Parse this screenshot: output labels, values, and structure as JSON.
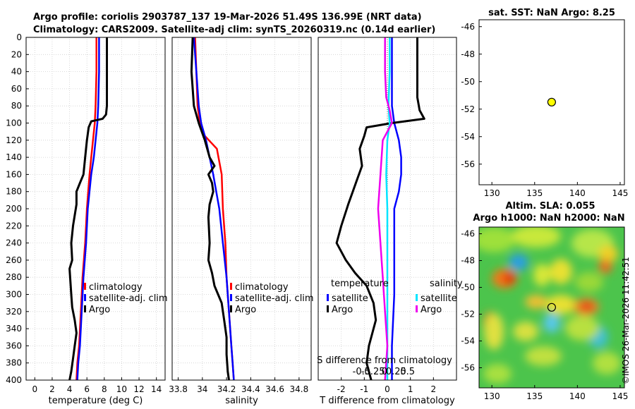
{
  "header": {
    "line1": "Argo profile: coriolis 2903787_137 19-Mar-2026 51.49S 136.99E (NRT data)",
    "line2": "Climatology: CARS2009. Satellite-adj clim: synTS_20260319.nc (0.14d earlier)"
  },
  "credit": "©IMOS 26-Mar-2026 11:42:51",
  "colors": {
    "climatology": "#ff0000",
    "satellite": "#0000ff",
    "argo": "#000000",
    "cyan": "#00e5ff",
    "magenta": "#ee00ee",
    "marker": "#ffff00"
  },
  "chart_data": [
    {
      "id": "temperature",
      "type": "line",
      "xlabel": "temperature (deg C)",
      "xlim": [
        -1,
        15
      ],
      "xticks": [
        0,
        2,
        4,
        6,
        8,
        10,
        12,
        14
      ],
      "ylim": [
        400,
        0
      ],
      "yticks": [
        0,
        20,
        40,
        60,
        80,
        100,
        120,
        140,
        160,
        180,
        200,
        220,
        240,
        260,
        280,
        300,
        320,
        340,
        360,
        380,
        400
      ],
      "legend": [
        "climatology",
        "satellite-adj. clim",
        "Argo"
      ],
      "series": [
        {
          "name": "climatology",
          "color": "#ff0000",
          "x": [
            7.1,
            7.1,
            7.0,
            6.9,
            6.7,
            6.5,
            6.3,
            6.0,
            5.8,
            5.5,
            5.3,
            5.1,
            4.9,
            4.8
          ],
          "y": [
            0,
            40,
            80,
            100,
            120,
            140,
            160,
            200,
            240,
            280,
            320,
            360,
            380,
            400
          ]
        },
        {
          "name": "satellite-adj. clim",
          "color": "#0000ff",
          "x": [
            7.4,
            7.4,
            7.3,
            7.2,
            7.0,
            6.8,
            6.5,
            6.1,
            5.9,
            5.6,
            5.4,
            5.2,
            5.0,
            4.9
          ],
          "y": [
            0,
            40,
            80,
            100,
            120,
            140,
            160,
            200,
            240,
            280,
            320,
            360,
            380,
            400
          ]
        },
        {
          "name": "Argo",
          "color": "#000000",
          "x": [
            8.3,
            8.3,
            8.3,
            8.2,
            7.8,
            6.5,
            6.2,
            6.0,
            5.8,
            5.6,
            5.2,
            4.8,
            4.8,
            4.4,
            4.2,
            4.3,
            4.0,
            4.1,
            4.2,
            4.3,
            4.6,
            4.8,
            4.6,
            4.4,
            4.2,
            4.0
          ],
          "y": [
            0,
            40,
            80,
            90,
            95,
            98,
            105,
            120,
            140,
            160,
            170,
            180,
            195,
            220,
            240,
            260,
            270,
            285,
            300,
            315,
            330,
            345,
            360,
            375,
            390,
            400
          ]
        }
      ]
    },
    {
      "id": "salinity",
      "type": "line",
      "xlabel": "salinity",
      "xlim": [
        33.75,
        34.9
      ],
      "xticks": [
        33.8,
        34,
        34.2,
        34.4,
        34.6,
        34.8
      ],
      "ylim": [
        400,
        0
      ],
      "legend": [
        "climatology",
        "satellite-adj. clim",
        "Argo"
      ],
      "series": [
        {
          "name": "climatology",
          "color": "#ff0000",
          "x": [
            33.94,
            33.95,
            33.96,
            33.98,
            34.02,
            34.12,
            34.16,
            34.17,
            34.19,
            34.2,
            34.22,
            34.24,
            34.25,
            34.26
          ],
          "y": [
            0,
            40,
            80,
            100,
            115,
            130,
            160,
            200,
            240,
            280,
            320,
            360,
            380,
            400
          ]
        },
        {
          "name": "satellite-adj. clim",
          "color": "#0000ff",
          "x": [
            33.93,
            33.95,
            33.97,
            33.99,
            34.03,
            34.06,
            34.09,
            34.14,
            34.17,
            34.2,
            34.22,
            34.24,
            34.25,
            34.26
          ],
          "y": [
            0,
            40,
            80,
            100,
            120,
            140,
            160,
            200,
            240,
            280,
            320,
            360,
            380,
            400
          ]
        },
        {
          "name": "Argo",
          "color": "#000000",
          "x": [
            33.92,
            33.91,
            33.92,
            33.93,
            33.97,
            34.02,
            34.06,
            34.1,
            34.05,
            34.08,
            34.09,
            34.06,
            34.05,
            34.06,
            34.05,
            34.08,
            34.1,
            34.13,
            34.16,
            34.18,
            34.2,
            34.2,
            34.21,
            34.22
          ],
          "y": [
            0,
            40,
            60,
            80,
            100,
            120,
            140,
            150,
            160,
            170,
            180,
            195,
            210,
            240,
            260,
            275,
            290,
            300,
            310,
            330,
            350,
            370,
            390,
            400
          ]
        }
      ]
    },
    {
      "id": "difference",
      "type": "line",
      "xlabel": "T difference from climatology",
      "xlim": [
        -3,
        3
      ],
      "xticks": [
        -2,
        -1,
        0,
        1,
        2
      ],
      "top_axis_label": "S difference from climatology",
      "top_ticks": [
        "-0.5",
        "-0.25",
        "0",
        "0.25",
        "0.5"
      ],
      "ylim": [
        400,
        0
      ],
      "legend_left": {
        "title": "temperature",
        "items": [
          "satellite",
          "Argo"
        ]
      },
      "legend_right": {
        "title": "salinity",
        "items": [
          "satellite",
          "Argo"
        ]
      },
      "series": [
        {
          "name": "T satellite",
          "color": "#0000ff",
          "x": [
            0.2,
            0.2,
            0.2,
            0.3,
            0.5,
            0.6,
            0.6,
            0.5,
            0.3,
            0.3,
            0.3,
            0.2,
            0.2
          ],
          "y": [
            0,
            40,
            80,
            100,
            120,
            140,
            160,
            180,
            200,
            240,
            300,
            360,
            400
          ]
        },
        {
          "name": "T Argo",
          "color": "#000000",
          "x": [
            1.3,
            1.3,
            1.3,
            1.4,
            1.6,
            0.2,
            -0.9,
            -1.0,
            -1.2,
            -1.1,
            -1.3,
            -1.5,
            -1.7,
            -2.0,
            -2.2,
            -1.8,
            -1.4,
            -0.9,
            -0.6,
            -0.5,
            -0.8,
            -0.9,
            -0.7
          ],
          "y": [
            0,
            40,
            70,
            85,
            95,
            100,
            105,
            115,
            130,
            150,
            165,
            180,
            195,
            220,
            240,
            260,
            275,
            290,
            310,
            330,
            360,
            380,
            400
          ]
        },
        {
          "name": "S satellite",
          "color": "#00e5ff",
          "x": [
            0.1,
            0.1,
            0.05,
            0.1,
            0.0,
            -0.05,
            0.0,
            0.0,
            0.0,
            0.0
          ],
          "y": [
            0,
            40,
            80,
            100,
            120,
            160,
            200,
            260,
            320,
            400
          ]
        },
        {
          "name": "S Argo",
          "color": "#ee00ee",
          "x": [
            -0.1,
            -0.1,
            -0.05,
            0.1,
            0.2,
            -0.2,
            -0.3,
            -0.4,
            -0.3,
            -0.2,
            -0.1,
            0.0,
            -0.1
          ],
          "y": [
            0,
            40,
            70,
            85,
            100,
            120,
            160,
            200,
            240,
            280,
            320,
            360,
            400
          ]
        }
      ]
    },
    {
      "id": "sst_map",
      "type": "scatter",
      "title": "sat. SST: NaN Argo: 8.25",
      "xlim": [
        128.5,
        145.5
      ],
      "ylim": [
        -57.5,
        -45.5
      ],
      "xticks": [
        130,
        135,
        140,
        145
      ],
      "yticks": [
        -46,
        -48,
        -50,
        -52,
        -54,
        -56
      ],
      "points": [
        {
          "x": 136.99,
          "y": -51.49
        }
      ]
    },
    {
      "id": "sla_map",
      "type": "heatmap",
      "title1": "Altim. SLA: 0.055",
      "title2": "Argo h1000: NaN h2000: NaN",
      "xlim": [
        128.5,
        145.5
      ],
      "ylim": [
        -57.5,
        -45.5
      ],
      "xticks": [
        130,
        135,
        140,
        145
      ],
      "yticks": [
        -46,
        -48,
        -50,
        -52,
        -54,
        -56
      ],
      "points": [
        {
          "x": 136.99,
          "y": -51.49
        }
      ]
    }
  ]
}
